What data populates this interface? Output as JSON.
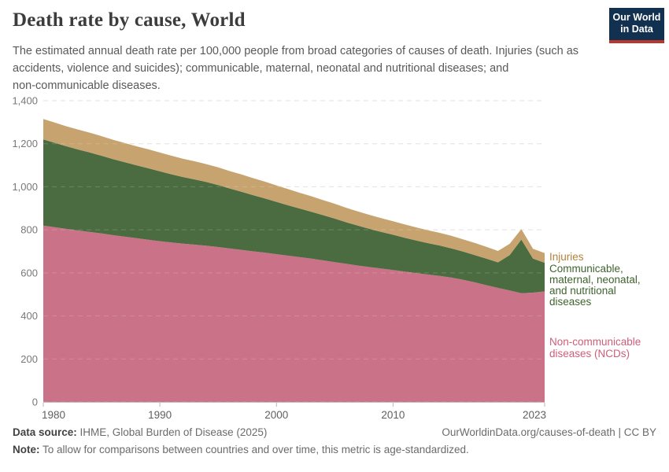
{
  "header": {
    "title": "Death rate by cause, World",
    "subtitle_lines": [
      "The estimated annual death rate per 100,000 people from broad categories of causes of death. Injuries (such as",
      "accidents, violence and suicides); communicable, maternal, neonatal and nutritional diseases; and",
      "non-communicable diseases."
    ],
    "logo": {
      "line1": "Our World",
      "line2": "in Data",
      "bg_color": "#12304f",
      "accent_color": "#b8382f"
    }
  },
  "chart_data": {
    "type": "area",
    "stacked": true,
    "title": "Death rate by cause, World",
    "ylabel": "",
    "xlabel": "",
    "ylim": [
      0,
      1400
    ],
    "grid": "dashed",
    "legend_position": "right-edge-labels",
    "x": [
      1980,
      1981,
      1982,
      1983,
      1984,
      1985,
      1986,
      1987,
      1988,
      1989,
      1990,
      1991,
      1992,
      1993,
      1994,
      1995,
      1996,
      1997,
      1998,
      1999,
      2000,
      2001,
      2002,
      2003,
      2004,
      2005,
      2006,
      2007,
      2008,
      2009,
      2010,
      2011,
      2012,
      2013,
      2014,
      2015,
      2016,
      2017,
      2018,
      2019,
      2020,
      2021,
      2022,
      2023
    ],
    "series": [
      {
        "name": "Non-communicable diseases (NCDs)",
        "label_lines": [
          "Non-communicable",
          "diseases (NCDs)"
        ],
        "color": "#ca7287",
        "label_color": "#cf5d78",
        "values": [
          820,
          812,
          804,
          797,
          790,
          783,
          775,
          768,
          761,
          754,
          747,
          741,
          736,
          731,
          726,
          720,
          713,
          707,
          700,
          694,
          687,
          680,
          673,
          666,
          658,
          650,
          642,
          634,
          627,
          620,
          613,
          606,
          599,
          592,
          586,
          578,
          568,
          556,
          543,
          530,
          518,
          505,
          508,
          514
        ]
      },
      {
        "name": "Communicable, maternal, neonatal, and nutritional diseases",
        "label_lines": [
          "Communicable,",
          "maternal, neonatal,",
          "and nutritional",
          "diseases"
        ],
        "color": "#4b6b41",
        "label_color": "#3f632e",
        "values": [
          400,
          392,
          384,
          376,
          369,
          361,
          353,
          346,
          339,
          332,
          325,
          317,
          309,
          303,
          296,
          288,
          279,
          270,
          261,
          252,
          243,
          234,
          226,
          218,
          210,
          202,
          193,
          185,
          177,
          170,
          164,
          157,
          151,
          146,
          141,
          136,
          131,
          127,
          123,
          119,
          165,
          250,
          158,
          133
        ]
      },
      {
        "name": "Injuries",
        "label_lines": [
          "Injuries"
        ],
        "color": "#c7a370",
        "label_color": "#b4813a",
        "values": [
          95,
          94,
          93,
          93,
          92,
          91,
          90,
          89,
          88,
          88,
          87,
          86,
          85,
          84,
          83,
          82,
          81,
          80,
          79,
          78,
          76,
          75,
          73,
          72,
          70,
          69,
          67,
          66,
          65,
          64,
          63,
          62,
          61,
          60,
          59,
          58,
          57,
          56,
          55,
          53,
          52,
          48,
          46,
          45
        ]
      }
    ],
    "y_ticks": [
      {
        "value": 0,
        "label": "0"
      },
      {
        "value": 200,
        "label": "200"
      },
      {
        "value": 400,
        "label": "400"
      },
      {
        "value": 600,
        "label": "600"
      },
      {
        "value": 800,
        "label": "800"
      },
      {
        "value": 1000,
        "label": "1,000"
      },
      {
        "value": 1200,
        "label": "1,200"
      },
      {
        "value": 1400,
        "label": "1,400"
      }
    ],
    "x_ticks": [
      {
        "value": 1980,
        "label": "1980"
      },
      {
        "value": 1990,
        "label": "1990"
      },
      {
        "value": 2000,
        "label": "2000"
      },
      {
        "value": 2010,
        "label": "2010"
      },
      {
        "value": 2023,
        "label": "2023"
      }
    ]
  },
  "footer": {
    "source_label": "Data source:",
    "source_text": " IHME, Global Burden of Disease (2025)",
    "link_text": "OurWorldinData.org/causes-of-death | CC BY",
    "note_label": "Note:",
    "note_text": " To allow for comparisons between countries and over time, this metric is age-standardized."
  }
}
